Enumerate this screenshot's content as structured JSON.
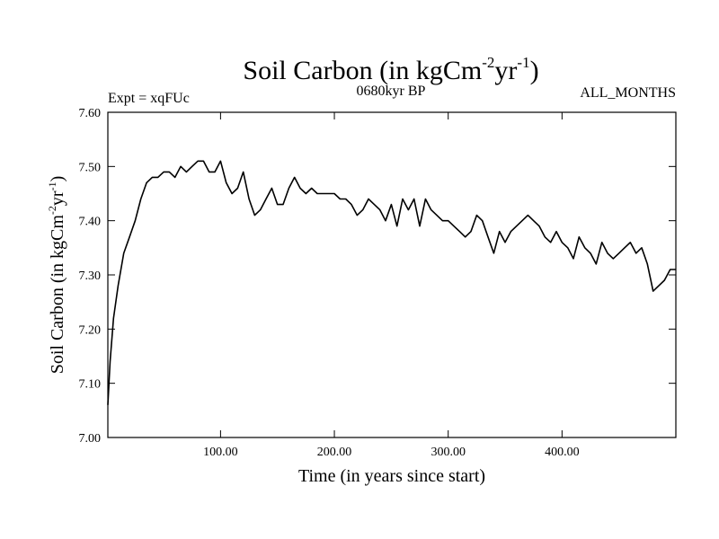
{
  "chart_data": {
    "type": "line",
    "title": "Soil Carbon (in kgCm^-2yr^-1)",
    "title_parts": {
      "main": "Soil Carbon (in kgCm",
      "exp1": "-2",
      "mid": "yr",
      "exp2": "-1",
      "end": ")"
    },
    "experiment_label": "Expt = xqFUc",
    "period_label": "0680kyr BP",
    "months_label": "ALL_MONTHS",
    "xlabel": "Time (in years since start)",
    "ylabel": "Soil Carbon (in kgCm^-2yr^-1)",
    "ylabel_parts": {
      "main": "Soil Carbon (in kgCm",
      "exp1": "-2",
      "mid": "yr",
      "exp2": "-1",
      "end": ")"
    },
    "xlim": [
      1,
      500
    ],
    "ylim": [
      7.0,
      7.6
    ],
    "x_ticks": [
      100,
      200,
      300,
      400
    ],
    "x_tick_labels": [
      "100.00",
      "200.00",
      "300.00",
      "400.00"
    ],
    "y_ticks": [
      7.0,
      7.1,
      7.2,
      7.3,
      7.4,
      7.5,
      7.6
    ],
    "y_tick_labels": [
      "7.00",
      "7.10",
      "7.20",
      "7.30",
      "7.40",
      "7.50",
      "7.60"
    ],
    "series": [
      {
        "name": "Soil Carbon",
        "color": "#000000",
        "x": [
          1,
          3,
          6,
          10,
          15,
          20,
          25,
          30,
          35,
          40,
          45,
          50,
          55,
          60,
          65,
          70,
          75,
          80,
          85,
          90,
          95,
          100,
          105,
          110,
          115,
          120,
          125,
          130,
          135,
          140,
          145,
          150,
          155,
          160,
          165,
          170,
          175,
          180,
          185,
          190,
          195,
          200,
          205,
          210,
          215,
          220,
          225,
          230,
          235,
          240,
          245,
          250,
          255,
          260,
          265,
          270,
          275,
          280,
          285,
          290,
          295,
          300,
          305,
          310,
          315,
          320,
          325,
          330,
          335,
          340,
          345,
          350,
          355,
          360,
          365,
          370,
          375,
          380,
          385,
          390,
          395,
          400,
          405,
          410,
          415,
          420,
          425,
          430,
          435,
          440,
          445,
          450,
          455,
          460,
          465,
          470,
          475,
          480,
          485,
          490,
          495,
          500
        ],
        "values": [
          7.06,
          7.14,
          7.22,
          7.28,
          7.34,
          7.37,
          7.4,
          7.44,
          7.47,
          7.48,
          7.48,
          7.49,
          7.49,
          7.48,
          7.5,
          7.49,
          7.5,
          7.51,
          7.51,
          7.49,
          7.49,
          7.51,
          7.47,
          7.45,
          7.46,
          7.49,
          7.44,
          7.41,
          7.42,
          7.44,
          7.46,
          7.43,
          7.43,
          7.46,
          7.48,
          7.46,
          7.45,
          7.46,
          7.45,
          7.45,
          7.45,
          7.45,
          7.44,
          7.44,
          7.43,
          7.41,
          7.42,
          7.44,
          7.43,
          7.42,
          7.4,
          7.43,
          7.39,
          7.44,
          7.42,
          7.44,
          7.39,
          7.44,
          7.42,
          7.41,
          7.4,
          7.4,
          7.39,
          7.38,
          7.37,
          7.38,
          7.41,
          7.4,
          7.37,
          7.34,
          7.38,
          7.36,
          7.38,
          7.39,
          7.4,
          7.41,
          7.4,
          7.39,
          7.37,
          7.36,
          7.38,
          7.36,
          7.35,
          7.33,
          7.37,
          7.35,
          7.34,
          7.32,
          7.36,
          7.34,
          7.33,
          7.34,
          7.35,
          7.36,
          7.34,
          7.35,
          7.32,
          7.27,
          7.28,
          7.29,
          7.31,
          7.31
        ]
      }
    ],
    "grid": false,
    "legend": "none"
  }
}
